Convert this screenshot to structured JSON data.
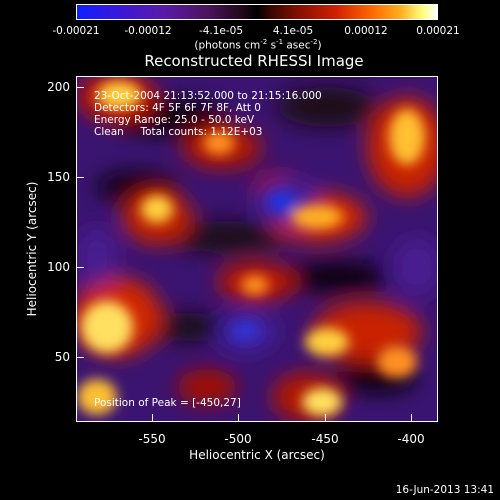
{
  "colorbar": {
    "labels": [
      "-0.00021",
      "-0.00012",
      "-4.1e-05",
      "4.1e-05",
      "0.00012",
      "0.00021"
    ],
    "units_prefix": "(photons cm",
    "units_exp1": "-2",
    "units_mid1": " s",
    "units_exp2": "-1",
    "units_mid2": " asec",
    "units_exp3": "-2",
    "units_suffix": ")"
  },
  "title": "Reconstructed RHESSI Image",
  "info": {
    "time": "23-Oct-2004 21:13:52.000 to 21:15:16.000",
    "detectors": "Detectors: 4F 5F 6F 7F 8F, Att 0",
    "energy": "Energy Range: 25.0 - 50.0 keV",
    "clean": "Clean     Total counts: 1.12E+03",
    "peak": "Position of Peak = [-450,27]"
  },
  "axes": {
    "xlabel": "Heliocentric X (arcsec)",
    "ylabel": "Heliocentric Y (arcsec)",
    "xticks": [
      "-550",
      "-500",
      "-450",
      "-400"
    ],
    "yticks": [
      "200",
      "150",
      "100",
      "50"
    ],
    "xlim": [
      -590,
      -395
    ],
    "ylim": [
      12,
      206
    ]
  },
  "timestamp": "16-Jun-2013 13:41",
  "colors": {
    "negative_deep": "#1020ff",
    "negative": "#5a1aa8",
    "zero": "#000000",
    "positive": "#d02000",
    "positive_high": "#ffb020",
    "peak": "#ffffff"
  }
}
